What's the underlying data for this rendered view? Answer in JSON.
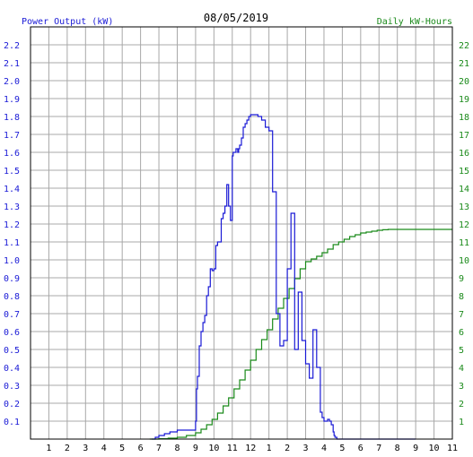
{
  "chart_data": {
    "type": "line",
    "title": "08/05/2019",
    "ylabel": "Power Output (kW)",
    "y2label": "Daily kW-Hours",
    "colors": {
      "power": "#1a1ad6",
      "energy": "#1a8a1a",
      "grid": "#a8a8a8",
      "frame": "#000000"
    },
    "grid": true,
    "xlim": [
      0,
      23
    ],
    "ylim": [
      0,
      2.3
    ],
    "y2lim": [
      0,
      23
    ],
    "x_tick_labels": [
      "1",
      "2",
      "3",
      "4",
      "5",
      "6",
      "7",
      "8",
      "9",
      "10",
      "11",
      "12",
      "1",
      "2",
      "3",
      "4",
      "5",
      "6",
      "7",
      "8",
      "9",
      "10",
      "11"
    ],
    "y_tick_labels": [
      "0.1",
      "0.2",
      "0.3",
      "0.4",
      "0.5",
      "0.6",
      "0.7",
      "0.8",
      "0.9",
      "1.0",
      "1.1",
      "1.2",
      "1.3",
      "1.4",
      "1.5",
      "1.6",
      "1.7",
      "1.8",
      "1.9",
      "2.0",
      "2.1",
      "2.2"
    ],
    "y2_tick_labels": [
      "1",
      "2",
      "3",
      "4",
      "5",
      "6",
      "7",
      "8",
      "9",
      "10",
      "11",
      "12",
      "13",
      "14",
      "15",
      "16",
      "17",
      "18",
      "19",
      "20",
      "21",
      "22"
    ],
    "series": [
      {
        "name": "Power Output (kW)",
        "axis": "left",
        "x": [
          6.6,
          6.8,
          7.0,
          7.3,
          7.6,
          8.0,
          8.5,
          8.9,
          9.0,
          9.05,
          9.1,
          9.2,
          9.3,
          9.4,
          9.5,
          9.6,
          9.7,
          9.8,
          9.9,
          10.0,
          10.1,
          10.2,
          10.4,
          10.5,
          10.6,
          10.7,
          10.8,
          10.9,
          11.0,
          11.05,
          11.1,
          11.2,
          11.3,
          11.35,
          11.4,
          11.5,
          11.6,
          11.7,
          11.8,
          11.9,
          12.0,
          12.2,
          12.4,
          12.6,
          12.8,
          13.0,
          13.2,
          13.4,
          13.6,
          13.8,
          14.0,
          14.2,
          14.4,
          14.6,
          14.8,
          15.0,
          15.2,
          15.4,
          15.6,
          15.8,
          15.9,
          16.0,
          16.1,
          16.2,
          16.3,
          16.4,
          16.5,
          16.55,
          16.6,
          16.7,
          16.8,
          16.9,
          17.0,
          17.1,
          17.2,
          17.3,
          17.4,
          17.5,
          17.6,
          17.7,
          17.8,
          17.9,
          18.0,
          18.2,
          18.3,
          18.4,
          18.5,
          18.6,
          18.7,
          18.8,
          18.9,
          19.0,
          19.2,
          19.5,
          19.8,
          20.0,
          20.1,
          20.2,
          20.4,
          20.6,
          20.8,
          21.0
        ],
        "values": [
          0.0,
          0.01,
          0.02,
          0.03,
          0.04,
          0.05,
          0.05,
          0.05,
          0.1,
          0.28,
          0.35,
          0.52,
          0.6,
          0.65,
          0.69,
          0.8,
          0.85,
          0.95,
          0.94,
          0.95,
          1.08,
          1.1,
          1.23,
          1.26,
          1.3,
          1.42,
          1.3,
          1.22,
          1.58,
          1.6,
          1.6,
          1.62,
          1.6,
          1.62,
          1.64,
          1.68,
          1.74,
          1.76,
          1.78,
          1.8,
          1.81,
          1.81,
          1.8,
          1.78,
          1.74,
          1.72,
          1.38,
          0.7,
          0.52,
          0.55,
          0.95,
          1.26,
          0.5,
          0.82,
          0.55,
          0.42,
          0.34,
          0.61,
          0.4,
          0.15,
          0.12,
          0.1,
          0.1,
          0.11,
          0.1,
          0.08,
          0.04,
          0.02,
          0.01,
          0.0,
          0.0,
          0.0,
          0.0,
          0.0,
          0.0,
          0.0,
          0.0,
          0.0,
          0.0,
          0.0,
          0.0,
          0.0,
          0.0,
          0.0,
          0.0,
          0.0,
          0.0,
          0.0,
          0.0,
          0.0,
          0.0,
          0.0,
          0.0,
          0.0,
          0.0,
          0.0,
          0.0,
          0.0,
          0.0,
          0.0,
          0.0,
          0.0
        ]
      },
      {
        "name": "Daily kW-Hours",
        "axis": "right",
        "x": [
          6.5,
          7.0,
          7.5,
          8.0,
          8.5,
          9.0,
          9.3,
          9.6,
          9.9,
          10.2,
          10.5,
          10.8,
          11.1,
          11.4,
          11.7,
          12.0,
          12.3,
          12.6,
          12.9,
          13.2,
          13.5,
          13.8,
          14.1,
          14.4,
          14.7,
          15.0,
          15.3,
          15.6,
          15.9,
          16.2,
          16.5,
          16.8,
          17.1,
          17.4,
          17.7,
          18.0,
          18.3,
          18.6,
          18.9,
          19.2,
          19.5,
          19.8,
          20.1,
          20.4,
          20.7,
          21.0,
          21.5,
          22.0,
          22.5,
          23.0
        ],
        "values": [
          0.0,
          0.02,
          0.05,
          0.1,
          0.2,
          0.35,
          0.55,
          0.8,
          1.1,
          1.45,
          1.85,
          2.3,
          2.8,
          3.3,
          3.85,
          4.4,
          5.0,
          5.55,
          6.1,
          6.7,
          7.3,
          7.85,
          8.4,
          8.95,
          9.5,
          9.9,
          10.05,
          10.2,
          10.4,
          10.6,
          10.85,
          11.0,
          11.15,
          11.3,
          11.4,
          11.5,
          11.55,
          11.6,
          11.65,
          11.68,
          11.7,
          11.7,
          11.7,
          11.7,
          11.7,
          11.7,
          11.7,
          11.7,
          11.7,
          11.7
        ]
      }
    ]
  }
}
